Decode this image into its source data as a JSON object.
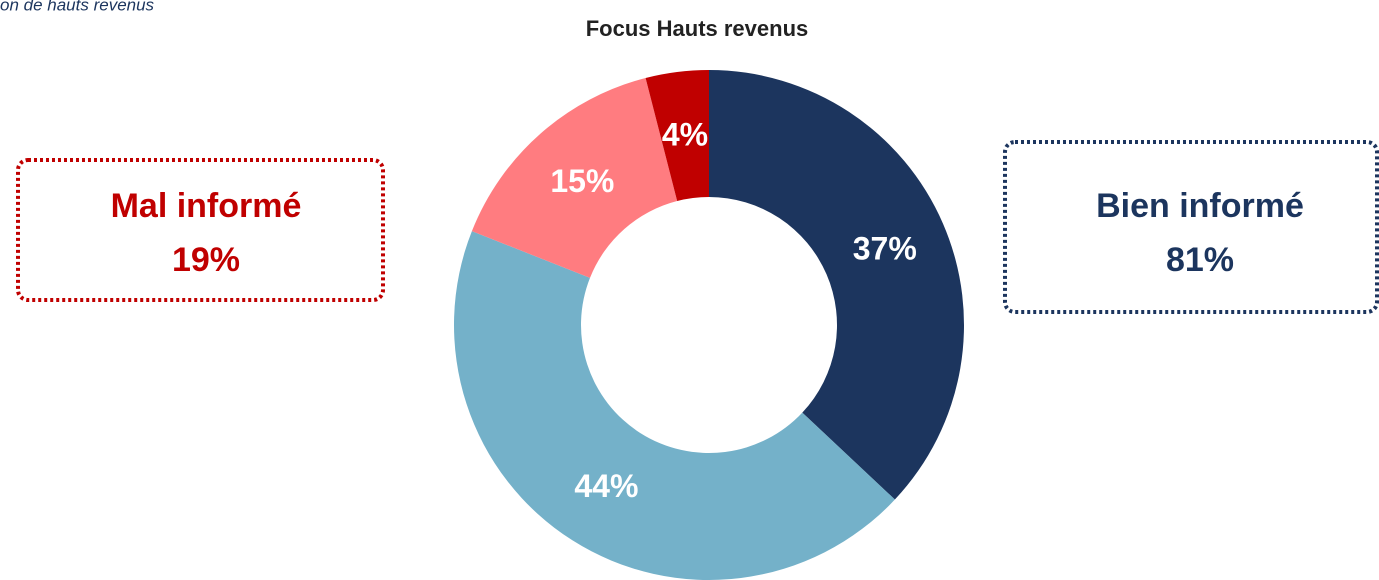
{
  "chart_data": {
    "type": "donut",
    "title": "Focus Hauts revenus",
    "subtitle": "on de hauts revenus",
    "categories": [
      null,
      null,
      null,
      null
    ],
    "values": [
      37,
      44,
      15,
      4
    ],
    "value_labels": [
      "37%",
      "44%",
      "15%",
      "4%"
    ],
    "colors": [
      "#1c355e",
      "#74b1c9",
      "#ff7c80",
      "#c00000"
    ],
    "annotations": [
      {
        "text": "Mal informé",
        "share": "19%",
        "color": "#c00000"
      },
      {
        "text": "Bien informé",
        "share": "81%",
        "color": "#1c355e"
      }
    ]
  }
}
